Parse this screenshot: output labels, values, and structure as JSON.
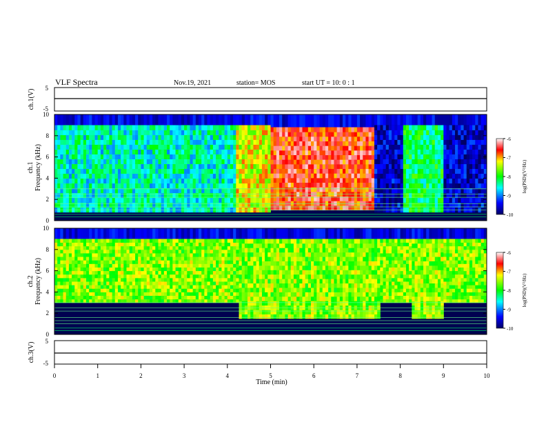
{
  "header": {
    "title": "VLF Spectra",
    "date": "Nov.19, 2021",
    "station": "station= MOS",
    "start_ut": "start  UT =   10: 0  : 1"
  },
  "chart_data": [
    {
      "type": "line",
      "panel": "ch1-voltage",
      "ylabel": "ch.1(V)",
      "yticks": [
        "5",
        "-5"
      ],
      "ylim": [
        -5,
        5
      ],
      "series": [
        {
          "values_note_free": true,
          "y": [
            0
          ]
        }
      ]
    },
    {
      "type": "heatmap",
      "panel": "ch1-spectrogram",
      "ylabel": "ch.1",
      "ylabel2": "Frequency (kHz)",
      "yticks": [
        "0",
        "2",
        "4",
        "6",
        "8",
        "10"
      ],
      "ylim": [
        0,
        10
      ],
      "xlim": [
        0,
        10
      ],
      "colorbar": {
        "label": "log(PSD)(V²/Hz)",
        "ticks": [
          "-6",
          "-7",
          "-8",
          "-9",
          "-10"
        ],
        "range": [
          -10,
          -6
        ]
      },
      "regions": [
        {
          "x": [
            0,
            4.2
          ],
          "y": [
            0.8,
            9
          ],
          "level": -8.5
        },
        {
          "x": [
            4.2,
            5.0
          ],
          "y": [
            0.8,
            9
          ],
          "level": -7.3
        },
        {
          "x": [
            5.0,
            7.4
          ],
          "y": [
            1.0,
            8.8
          ],
          "level": -6.6
        },
        {
          "x": [
            8.1,
            9.0
          ],
          "y": [
            0.8,
            9
          ],
          "level": -8.2
        }
      ]
    },
    {
      "type": "heatmap",
      "panel": "ch2-spectrogram",
      "ylabel": "ch.2",
      "ylabel2": "Frequency (kHz)",
      "yticks": [
        "0",
        "2",
        "4",
        "6",
        "8",
        "10"
      ],
      "ylim": [
        0,
        10
      ],
      "xlim": [
        0,
        10
      ],
      "colorbar": {
        "label": "log(PSD)(V²/Hz)",
        "ticks": [
          "-6",
          "-7",
          "-8",
          "-9",
          "-10"
        ],
        "range": [
          -10,
          -6
        ]
      },
      "regions": [
        {
          "x": [
            0,
            10
          ],
          "y": [
            3,
            9
          ],
          "level": -7.6
        },
        {
          "x": [
            4.3,
            7.5
          ],
          "y": [
            1.5,
            9
          ],
          "level": -7.9
        },
        {
          "x": [
            8.3,
            9.0
          ],
          "y": [
            1.5,
            9
          ],
          "level": -8.0
        }
      ]
    },
    {
      "type": "line",
      "panel": "ch3-voltage",
      "ylabel": "ch.3(V)",
      "yticks": [
        "5",
        "-5"
      ],
      "ylim": [
        -5,
        5
      ],
      "xlabel": "Time  (min)",
      "xticks": [
        "0",
        "1",
        "2",
        "3",
        "4",
        "5",
        "6",
        "7",
        "8",
        "9",
        "10"
      ],
      "xlim": [
        0,
        10
      ],
      "series": [
        {
          "y": [
            0
          ]
        }
      ]
    }
  ],
  "colors": {
    "dark_blue": "#000064",
    "blue": "#0000ff",
    "cyan": "#00ffff",
    "green": "#00ff00",
    "yellow": "#ffff00",
    "red": "#ff0000"
  }
}
